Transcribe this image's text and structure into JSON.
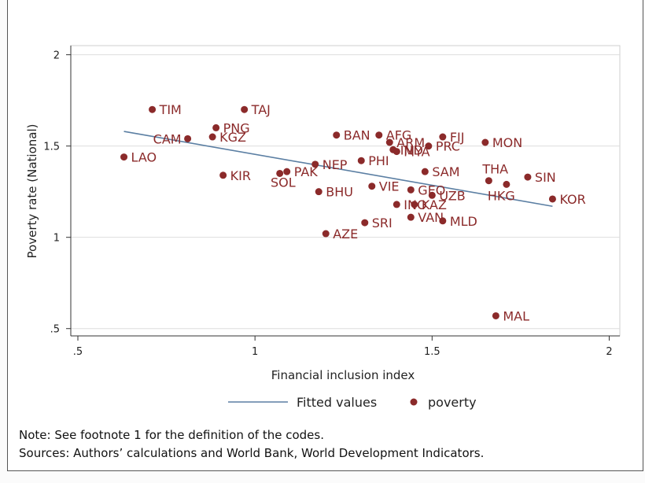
{
  "chart_data": {
    "type": "scatter",
    "title": "",
    "xlabel": "Financial inclusion index",
    "ylabel": "Poverty rate (National)",
    "xlim": [
      0.48,
      2.03
    ],
    "ylim": [
      0.46,
      2.05
    ],
    "x_ticks": [
      0.5,
      1,
      1.5,
      2
    ],
    "x_tick_labels": [
      ".5",
      "1",
      "1.5",
      "2"
    ],
    "y_ticks": [
      0.5,
      1,
      1.5,
      2
    ],
    "y_tick_labels": [
      ".5",
      "1",
      "1.5",
      "2"
    ],
    "grid": "horizontal",
    "legend_position": "bottom",
    "colors": {
      "points": "#8b2a2a",
      "fit": "#5b7fa3",
      "grid": "#dddddd"
    },
    "series": [
      {
        "name": "poverty",
        "type": "scatter",
        "points": [
          {
            "label": "TIM",
            "x": 0.71,
            "y": 1.7
          },
          {
            "label": "TAJ",
            "x": 0.97,
            "y": 1.7
          },
          {
            "label": "PNG",
            "x": 0.89,
            "y": 1.6
          },
          {
            "label": "CAM",
            "x": 0.81,
            "y": 1.54
          },
          {
            "label": "KGZ",
            "x": 0.88,
            "y": 1.55
          },
          {
            "label": "LAO",
            "x": 0.63,
            "y": 1.44
          },
          {
            "label": "KIR",
            "x": 0.91,
            "y": 1.34
          },
          {
            "label": "SOL",
            "x": 1.07,
            "y": 1.35
          },
          {
            "label": "PAK",
            "x": 1.09,
            "y": 1.36
          },
          {
            "label": "NEP",
            "x": 1.17,
            "y": 1.4
          },
          {
            "label": "BHU",
            "x": 1.18,
            "y": 1.25
          },
          {
            "label": "AZE",
            "x": 1.2,
            "y": 1.02
          },
          {
            "label": "BAN",
            "x": 1.23,
            "y": 1.56
          },
          {
            "label": "AFG",
            "x": 1.35,
            "y": 1.56
          },
          {
            "label": "ARM",
            "x": 1.38,
            "y": 1.52
          },
          {
            "label": "IND",
            "x": 1.39,
            "y": 1.48
          },
          {
            "label": "PHI",
            "x": 1.3,
            "y": 1.42
          },
          {
            "label": "MYA",
            "x": 1.4,
            "y": 1.47
          },
          {
            "label": "PRC",
            "x": 1.49,
            "y": 1.5
          },
          {
            "label": "FIJ",
            "x": 1.53,
            "y": 1.55
          },
          {
            "label": "MON",
            "x": 1.65,
            "y": 1.52
          },
          {
            "label": "SAM",
            "x": 1.48,
            "y": 1.36
          },
          {
            "label": "VIE",
            "x": 1.33,
            "y": 1.28
          },
          {
            "label": "GEO",
            "x": 1.44,
            "y": 1.26
          },
          {
            "label": "UZB",
            "x": 1.5,
            "y": 1.23
          },
          {
            "label": "INO",
            "x": 1.4,
            "y": 1.18
          },
          {
            "label": "KAZ",
            "x": 1.45,
            "y": 1.18
          },
          {
            "label": "VAN",
            "x": 1.44,
            "y": 1.11
          },
          {
            "label": "SRI",
            "x": 1.31,
            "y": 1.08
          },
          {
            "label": "MLD",
            "x": 1.53,
            "y": 1.09
          },
          {
            "label": "THA",
            "x": 1.66,
            "y": 1.31
          },
          {
            "label": "HKG",
            "x": 1.71,
            "y": 1.29
          },
          {
            "label": "SIN",
            "x": 1.77,
            "y": 1.33
          },
          {
            "label": "KOR",
            "x": 1.84,
            "y": 1.21
          },
          {
            "label": "MAL",
            "x": 1.68,
            "y": 0.57
          }
        ]
      },
      {
        "name": "Fitted values",
        "type": "line",
        "points": [
          {
            "x": 0.63,
            "y": 1.58
          },
          {
            "x": 1.84,
            "y": 1.17
          }
        ]
      }
    ],
    "legend": [
      {
        "label": "Fitted values",
        "marker": "line"
      },
      {
        "label": "poverty",
        "marker": "dot"
      }
    ]
  },
  "notes": {
    "line1": "Note: See footnote 1 for the definition of the codes.",
    "line2": "Sources: Authors’ calculations and World Bank, World Development Indicators."
  }
}
